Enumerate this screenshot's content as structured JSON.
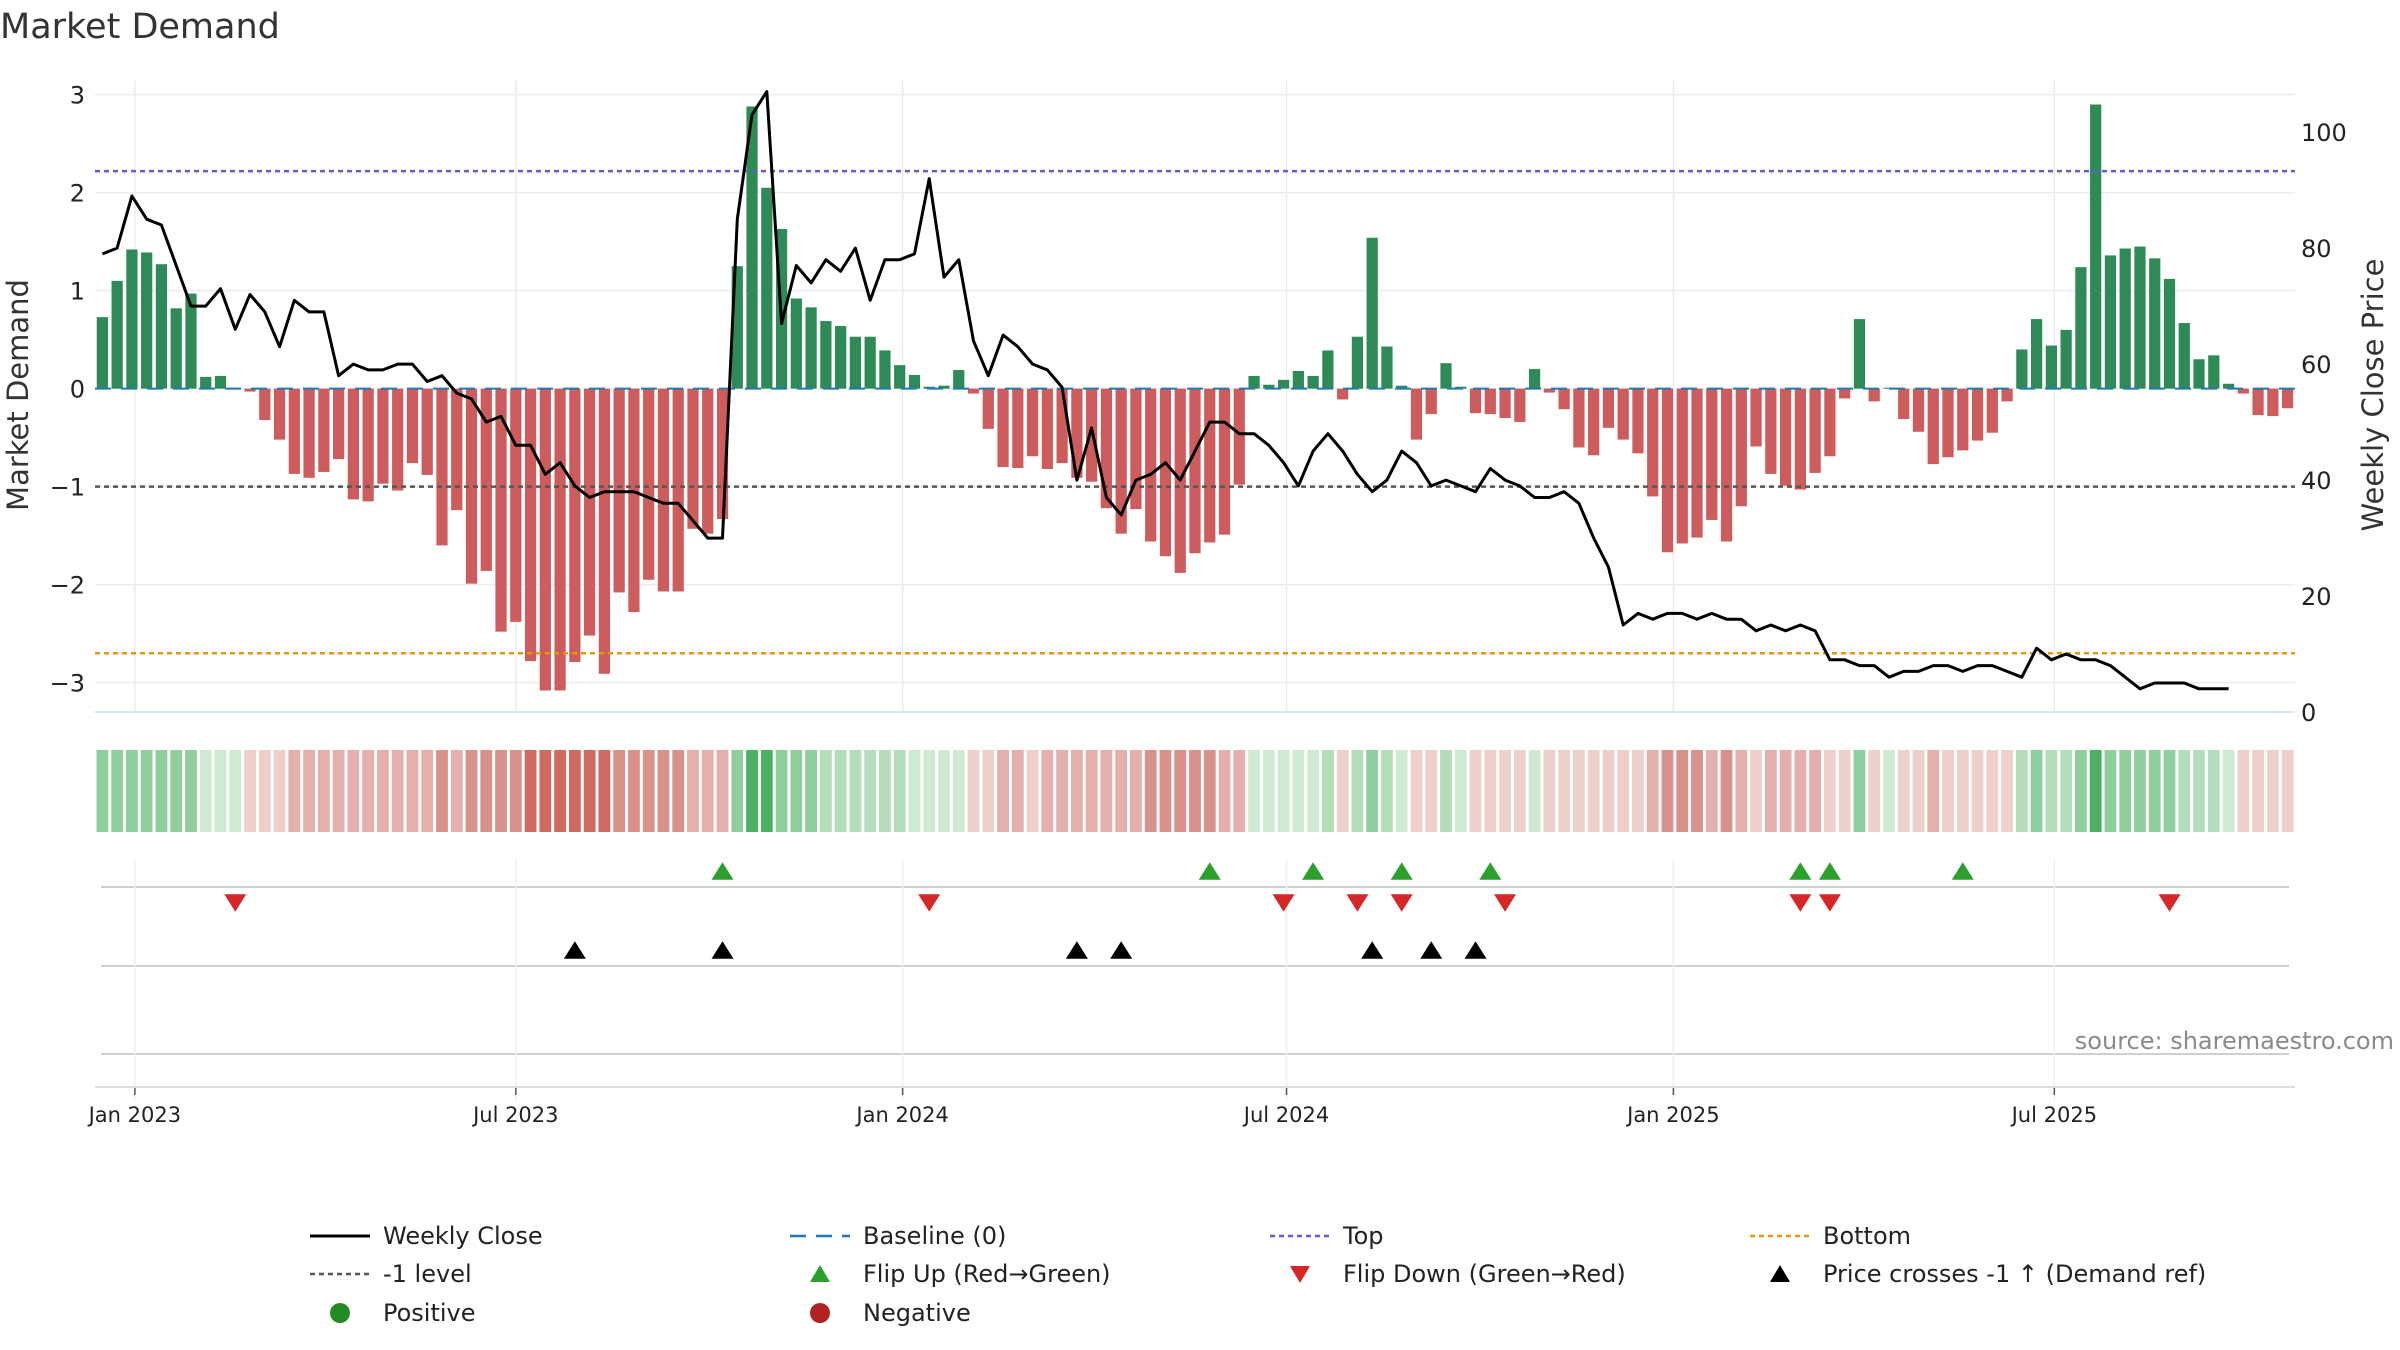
{
  "colors": {
    "pos": "#2e8b57",
    "neg": "#cd5c5c",
    "price": "#000000",
    "top": "#6a5acd",
    "bottom": "#e6960f",
    "level": "#555555",
    "baseline": "#1f77b4",
    "flip_up": "#2ca02c",
    "flip_down": "#d62728",
    "cross": "#000000",
    "pos_dot": "#228b22",
    "neg_dot": "#b22222"
  },
  "chart_data": {
    "type": "bar",
    "title": "Market Demand",
    "ylabel": "Market Demand",
    "y2label": "Weekly Close Price",
    "ylim": [
      -3.3,
      3.15
    ],
    "y2lim": [
      0,
      109
    ],
    "yticks": [
      3,
      2,
      1,
      0,
      -1,
      -2,
      -3
    ],
    "yticklabels": [
      "3",
      "2",
      "1",
      "0",
      "−1",
      "−2",
      "−3"
    ],
    "y2ticks": [
      100,
      80,
      60,
      40,
      20,
      0
    ],
    "start_week": 0,
    "xticks": [
      {
        "label": "Jan 2023",
        "week": 2.2
      },
      {
        "label": "Jul 2023",
        "week": 28.0
      },
      {
        "label": "Jan 2024",
        "week": 54.2
      },
      {
        "label": "Jul 2024",
        "week": 80.2
      },
      {
        "label": "Jan 2025",
        "week": 106.4
      },
      {
        "label": "Jul 2025",
        "week": 132.2
      }
    ],
    "top_level": 2.22,
    "bottom_level": -2.7,
    "minus_one_level": -1,
    "series": [
      {
        "name": "Market Demand",
        "values": [
          0.73,
          1.1,
          1.42,
          1.39,
          1.27,
          0.82,
          0.97,
          0.12,
          0.13,
          0,
          -0.03,
          -0.32,
          -0.52,
          -0.87,
          -0.91,
          -0.85,
          -0.72,
          -1.13,
          -1.15,
          -0.97,
          -1.04,
          -0.76,
          -0.88,
          -1.6,
          -1.24,
          -1.99,
          -1.86,
          -2.48,
          -2.38,
          -2.78,
          -3.08,
          -3.08,
          -2.79,
          -2.52,
          -2.91,
          -2.08,
          -2.28,
          -1.95,
          -2.07,
          -2.07,
          -1.43,
          -1.48,
          -1.33,
          1.25,
          2.88,
          2.05,
          1.63,
          0.92,
          0.83,
          0.69,
          0.64,
          0.53,
          0.53,
          0.39,
          0.24,
          0.14,
          0.02,
          0.03,
          0.19,
          -0.05,
          -0.41,
          -0.8,
          -0.81,
          -0.69,
          -0.82,
          -0.76,
          -0.91,
          -0.95,
          -1.22,
          -1.48,
          -1.23,
          -1.56,
          -1.71,
          -1.88,
          -1.68,
          -1.57,
          -1.49,
          -0.98,
          0.13,
          0.04,
          0.09,
          0.18,
          0.13,
          0.39,
          -0.11,
          0.53,
          1.54,
          0.43,
          0.03,
          -0.52,
          -0.26,
          0.26,
          0.02,
          -0.25,
          -0.26,
          -0.3,
          -0.34,
          0.2,
          -0.04,
          -0.21,
          -0.6,
          -0.68,
          -0.4,
          -0.52,
          -0.66,
          -1.1,
          -1.67,
          -1.58,
          -1.52,
          -1.34,
          -1.56,
          -1.2,
          -0.59,
          -0.87,
          -0.99,
          -1.03,
          -0.86,
          -0.69,
          -0.1,
          0.71,
          -0.13,
          0.01,
          -0.31,
          -0.44,
          -0.77,
          -0.7,
          -0.63,
          -0.53,
          -0.45,
          -0.13,
          0.4,
          0.71,
          0.44,
          0.6,
          1.24,
          2.9,
          1.36,
          1.43,
          1.45,
          1.33,
          1.12,
          0.67,
          0.3,
          0.34,
          0.05,
          -0.05,
          -0.27,
          -0.28,
          -0.2
        ]
      },
      {
        "name": "Weekly Close",
        "axis": "y2",
        "values": [
          79,
          80,
          89,
          85,
          84,
          77,
          70,
          70,
          73,
          66,
          72,
          69,
          63,
          71,
          69,
          69,
          58,
          60,
          59,
          59,
          60,
          60,
          57,
          58,
          55,
          54,
          50,
          51,
          46,
          46,
          41,
          43,
          39,
          37,
          38,
          38,
          38,
          37,
          36,
          36,
          33,
          30,
          30,
          85,
          103,
          107,
          67,
          77,
          74,
          78,
          76,
          80,
          71,
          78,
          78,
          79,
          92,
          75,
          78,
          64,
          58,
          65,
          63,
          60,
          59,
          56,
          40,
          49,
          37,
          34,
          40,
          41,
          43,
          40,
          45,
          50,
          50,
          48,
          48,
          46,
          43,
          39,
          45,
          48,
          45,
          41,
          38,
          40,
          45,
          43,
          39,
          40,
          39,
          38,
          42,
          40,
          39,
          37,
          37,
          38,
          36,
          30,
          25,
          15,
          17,
          16,
          17,
          17,
          16,
          17,
          16,
          16,
          14,
          15,
          14,
          15,
          14,
          9,
          9,
          8,
          8,
          6,
          7,
          7,
          8,
          8,
          7,
          8,
          8,
          7,
          6,
          11,
          9,
          10,
          9,
          9,
          8,
          6,
          4,
          5,
          5,
          5,
          4,
          4,
          4
        ]
      }
    ],
    "flip_up_weeks": [
      42,
      75,
      82,
      88,
      94,
      115,
      117,
      126
    ],
    "flip_down_weeks": [
      9,
      56,
      80,
      85,
      88,
      95,
      115,
      117,
      140
    ],
    "cross_weeks": [
      32,
      42,
      66,
      69,
      86,
      90,
      93
    ],
    "legend": [
      [
        "Weekly Close",
        "Baseline (0)",
        "Top",
        "Bottom"
      ],
      [
        "-1 level",
        "Flip Up (Red→Green)",
        "Flip Down (Green→Red)",
        "Price crosses -1 ↑ (Demand ref)"
      ],
      [
        "Positive",
        "Negative"
      ]
    ]
  },
  "source": "source: sharemaestro.com"
}
